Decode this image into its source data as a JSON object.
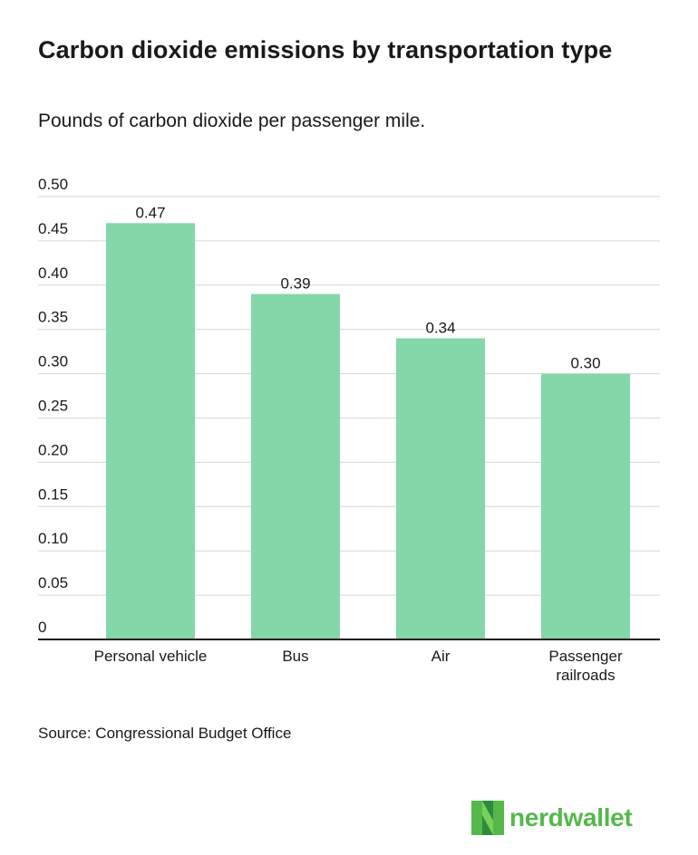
{
  "title": "Carbon dioxide emissions by transportation type",
  "subtitle": "Pounds of carbon dioxide per passenger mile.",
  "source": "Source: Congressional Budget Office",
  "logo_text": "nerdwallet",
  "colors": {
    "bar": "#84d7a9",
    "gridline": "#d6d6d6",
    "axis": "#1a1a1a",
    "logo_green": "#55b84a",
    "logo_dark_green": "#2e8b3a"
  },
  "chart_data": {
    "type": "bar",
    "title": "Carbon dioxide emissions by transportation type",
    "subtitle": "Pounds of carbon dioxide per passenger mile.",
    "xlabel": "",
    "ylabel": "",
    "categories": [
      "Personal vehicle",
      "Bus",
      "Air",
      "Passenger railroads"
    ],
    "category_lines": [
      [
        "Personal vehicle"
      ],
      [
        "Bus"
      ],
      [
        "Air"
      ],
      [
        "Passenger",
        "railroads"
      ]
    ],
    "values": [
      0.47,
      0.39,
      0.34,
      0.3
    ],
    "value_labels": [
      "0.47",
      "0.39",
      "0.34",
      "0.30"
    ],
    "ylim": [
      0,
      0.5
    ],
    "yticks": [
      0,
      0.05,
      0.1,
      0.15,
      0.2,
      0.25,
      0.3,
      0.35,
      0.4,
      0.45,
      0.5
    ],
    "ytick_labels": [
      "0",
      "0.05",
      "0.10",
      "0.15",
      "0.20",
      "0.25",
      "0.30",
      "0.35",
      "0.40",
      "0.45",
      "0.50"
    ],
    "grid": true,
    "legend": "none"
  }
}
